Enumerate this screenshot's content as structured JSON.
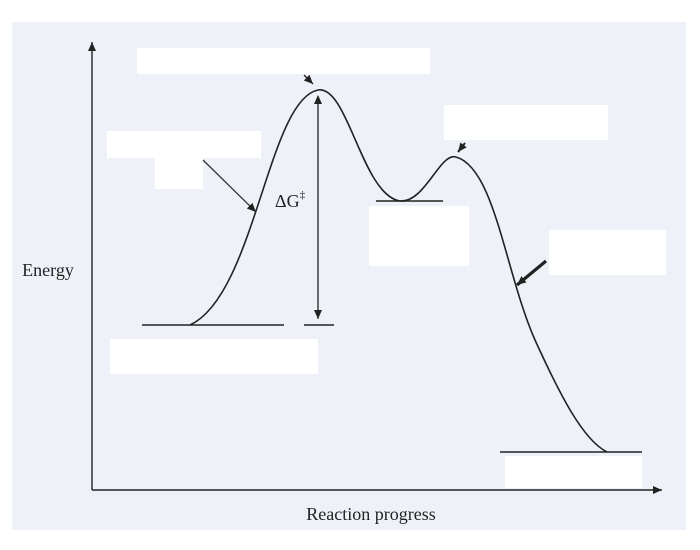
{
  "diagram": {
    "y_axis_label": "Energy",
    "x_axis_label": "Reaction progress",
    "delta_g_label": "ΔG",
    "delta_g_superscript": "‡",
    "colors": {
      "background": "#ffffff",
      "panel": "#eef1f8",
      "ink": "#222222",
      "blank_box": "#ffffff"
    },
    "blank_label_boxes": [
      "transition-state-label-box",
      "activation-energy-label-box-upper",
      "activation-energy-label-box-lower",
      "second-transition-state-label-box",
      "intermediate-label-box",
      "product-slope-label-box",
      "reactants-label-box",
      "products-label-box"
    ]
  }
}
